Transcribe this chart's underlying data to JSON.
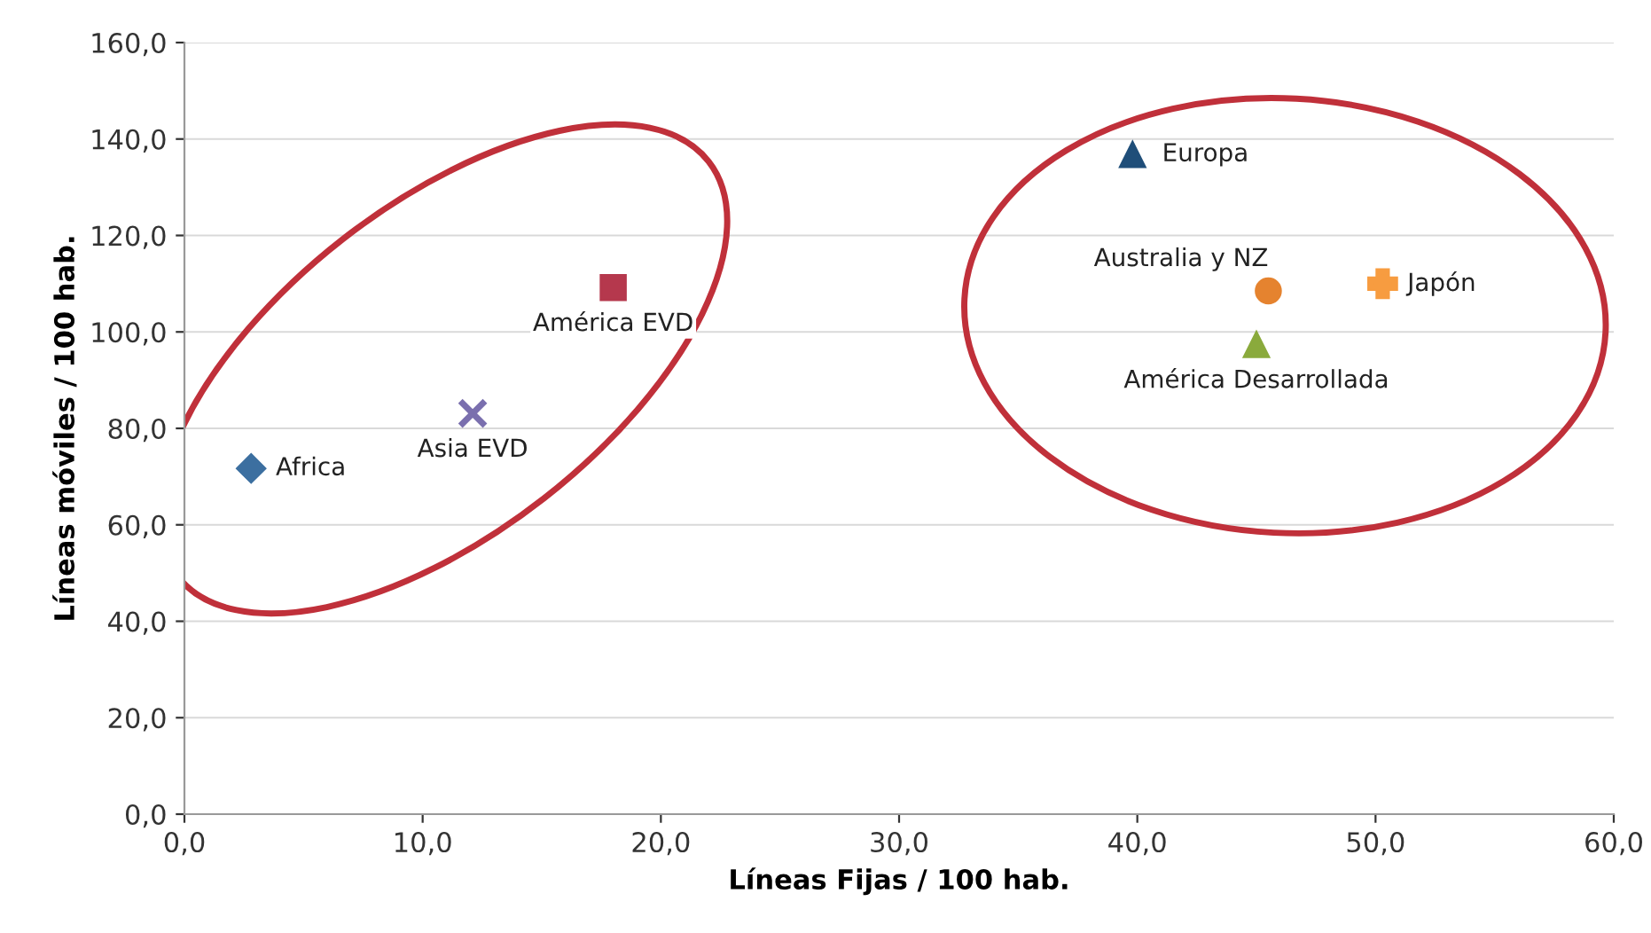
{
  "chart_data": {
    "type": "scatter",
    "xlabel": "Líneas Fijas / 100 hab.",
    "ylabel": "Líneas móviles / 100 hab.",
    "xlim": [
      0,
      60
    ],
    "ylim": [
      0,
      160
    ],
    "xticks": [
      {
        "value": 0,
        "label": "0,0"
      },
      {
        "value": 10,
        "label": "10,0"
      },
      {
        "value": 20,
        "label": "20,0"
      },
      {
        "value": 30,
        "label": "30,0"
      },
      {
        "value": 40,
        "label": "40,0"
      },
      {
        "value": 50,
        "label": "50,0"
      },
      {
        "value": 60,
        "label": "60,0"
      }
    ],
    "yticks": [
      {
        "value": 0,
        "label": "0,0"
      },
      {
        "value": 20,
        "label": "20,0"
      },
      {
        "value": 40,
        "label": "40,0"
      },
      {
        "value": 60,
        "label": "60,0"
      },
      {
        "value": 80,
        "label": "80,0"
      },
      {
        "value": 100,
        "label": "100,0"
      },
      {
        "value": 120,
        "label": "120,0"
      },
      {
        "value": 140,
        "label": "140,0"
      },
      {
        "value": 160,
        "label": "160,0"
      }
    ],
    "grid": "y",
    "legend": false,
    "series": [
      {
        "name": "Africa",
        "color": "#3c6fa0",
        "marker": "diamond",
        "x": [
          2.8
        ],
        "values": [
          71.7
        ]
      },
      {
        "name": "Asia EVD",
        "color": "#7a6fae",
        "marker": "cross",
        "x": [
          12.1
        ],
        "values": [
          83.1
        ]
      },
      {
        "name": "América EVD",
        "color": "#b5384d",
        "marker": "square",
        "x": [
          18.0
        ],
        "values": [
          109.2
        ]
      },
      {
        "name": "Europa",
        "color": "#1f4e79",
        "marker": "triangle",
        "x": [
          39.8
        ],
        "values": [
          136.8
        ]
      },
      {
        "name": "Australia y NZ",
        "color": "#e5832f",
        "marker": "circle",
        "x": [
          45.5
        ],
        "values": [
          108.5
        ]
      },
      {
        "name": "Japón",
        "color": "#f79c40",
        "marker": "plus",
        "x": [
          50.3
        ],
        "values": [
          110.0
        ]
      },
      {
        "name": "América Desarrollada",
        "color": "#8aaa3c",
        "marker": "triangle",
        "x": [
          45.0
        ],
        "values": [
          97.4
        ]
      }
    ]
  }
}
